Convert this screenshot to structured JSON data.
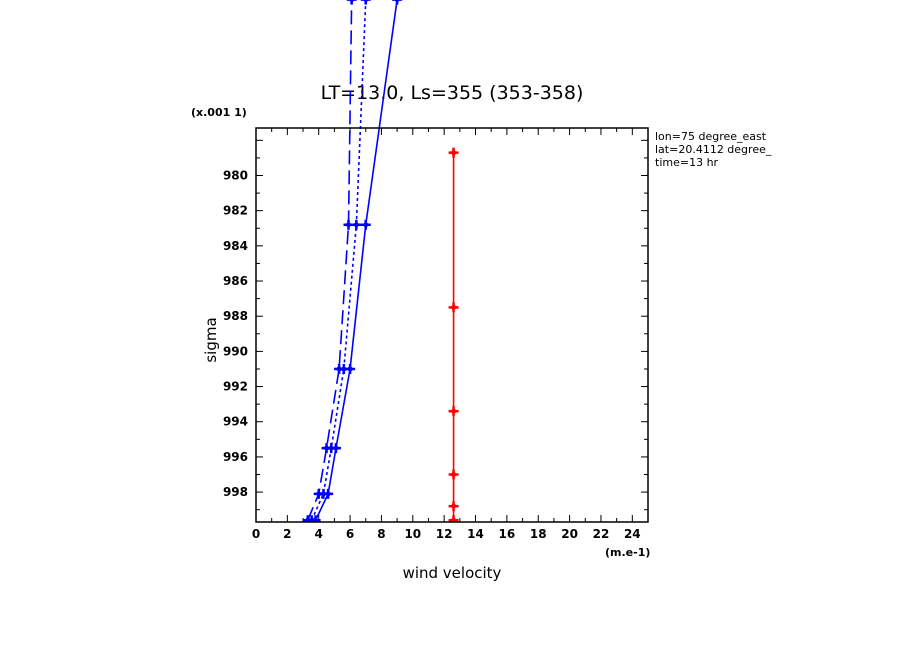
{
  "chart_data": {
    "type": "line",
    "title": "LT=13.0, Ls=355 (353-358)",
    "xlabel": "wind velocity",
    "ylabel": "sigma",
    "x_units": "(m.e-1)",
    "y_units": "(x.001 1)",
    "xlim": [
      0,
      25
    ],
    "ylim": [
      999.7,
      977.3
    ],
    "x_ticks": [
      0,
      2,
      4,
      6,
      8,
      10,
      12,
      14,
      16,
      18,
      20,
      22,
      24
    ],
    "y_ticks": [
      980,
      982,
      984,
      986,
      988,
      990,
      992,
      994,
      996,
      998
    ],
    "annotations": [
      "lon=75 degree_east",
      "lat=20.4112 degree_",
      "time=13 hr"
    ],
    "series": [
      {
        "style": "solid",
        "color": "#0000ff",
        "x": [
          3.8,
          4.6,
          5.1,
          6.0,
          7.0,
          9.0
        ],
        "y": [
          999.6,
          998.1,
          995.5,
          991.0,
          982.8,
          970.0
        ]
      },
      {
        "style": "dotted",
        "color": "#0000ff",
        "x": [
          3.55,
          4.3,
          4.8,
          5.6,
          6.4,
          7.0
        ],
        "y": [
          999.6,
          998.1,
          995.5,
          991.0,
          982.8,
          970.0
        ]
      },
      {
        "style": "dashed",
        "color": "#0000ff",
        "x": [
          3.3,
          4.0,
          4.5,
          5.3,
          5.9,
          6.1
        ],
        "y": [
          999.6,
          998.1,
          995.5,
          991.0,
          982.8,
          970.0
        ]
      },
      {
        "style": "solid",
        "color": "#ff0000",
        "x": [
          12.6,
          12.6,
          12.6,
          12.6,
          12.6,
          12.6
        ],
        "y": [
          999.6,
          998.8,
          997.0,
          993.4,
          987.5,
          978.7
        ]
      }
    ]
  }
}
